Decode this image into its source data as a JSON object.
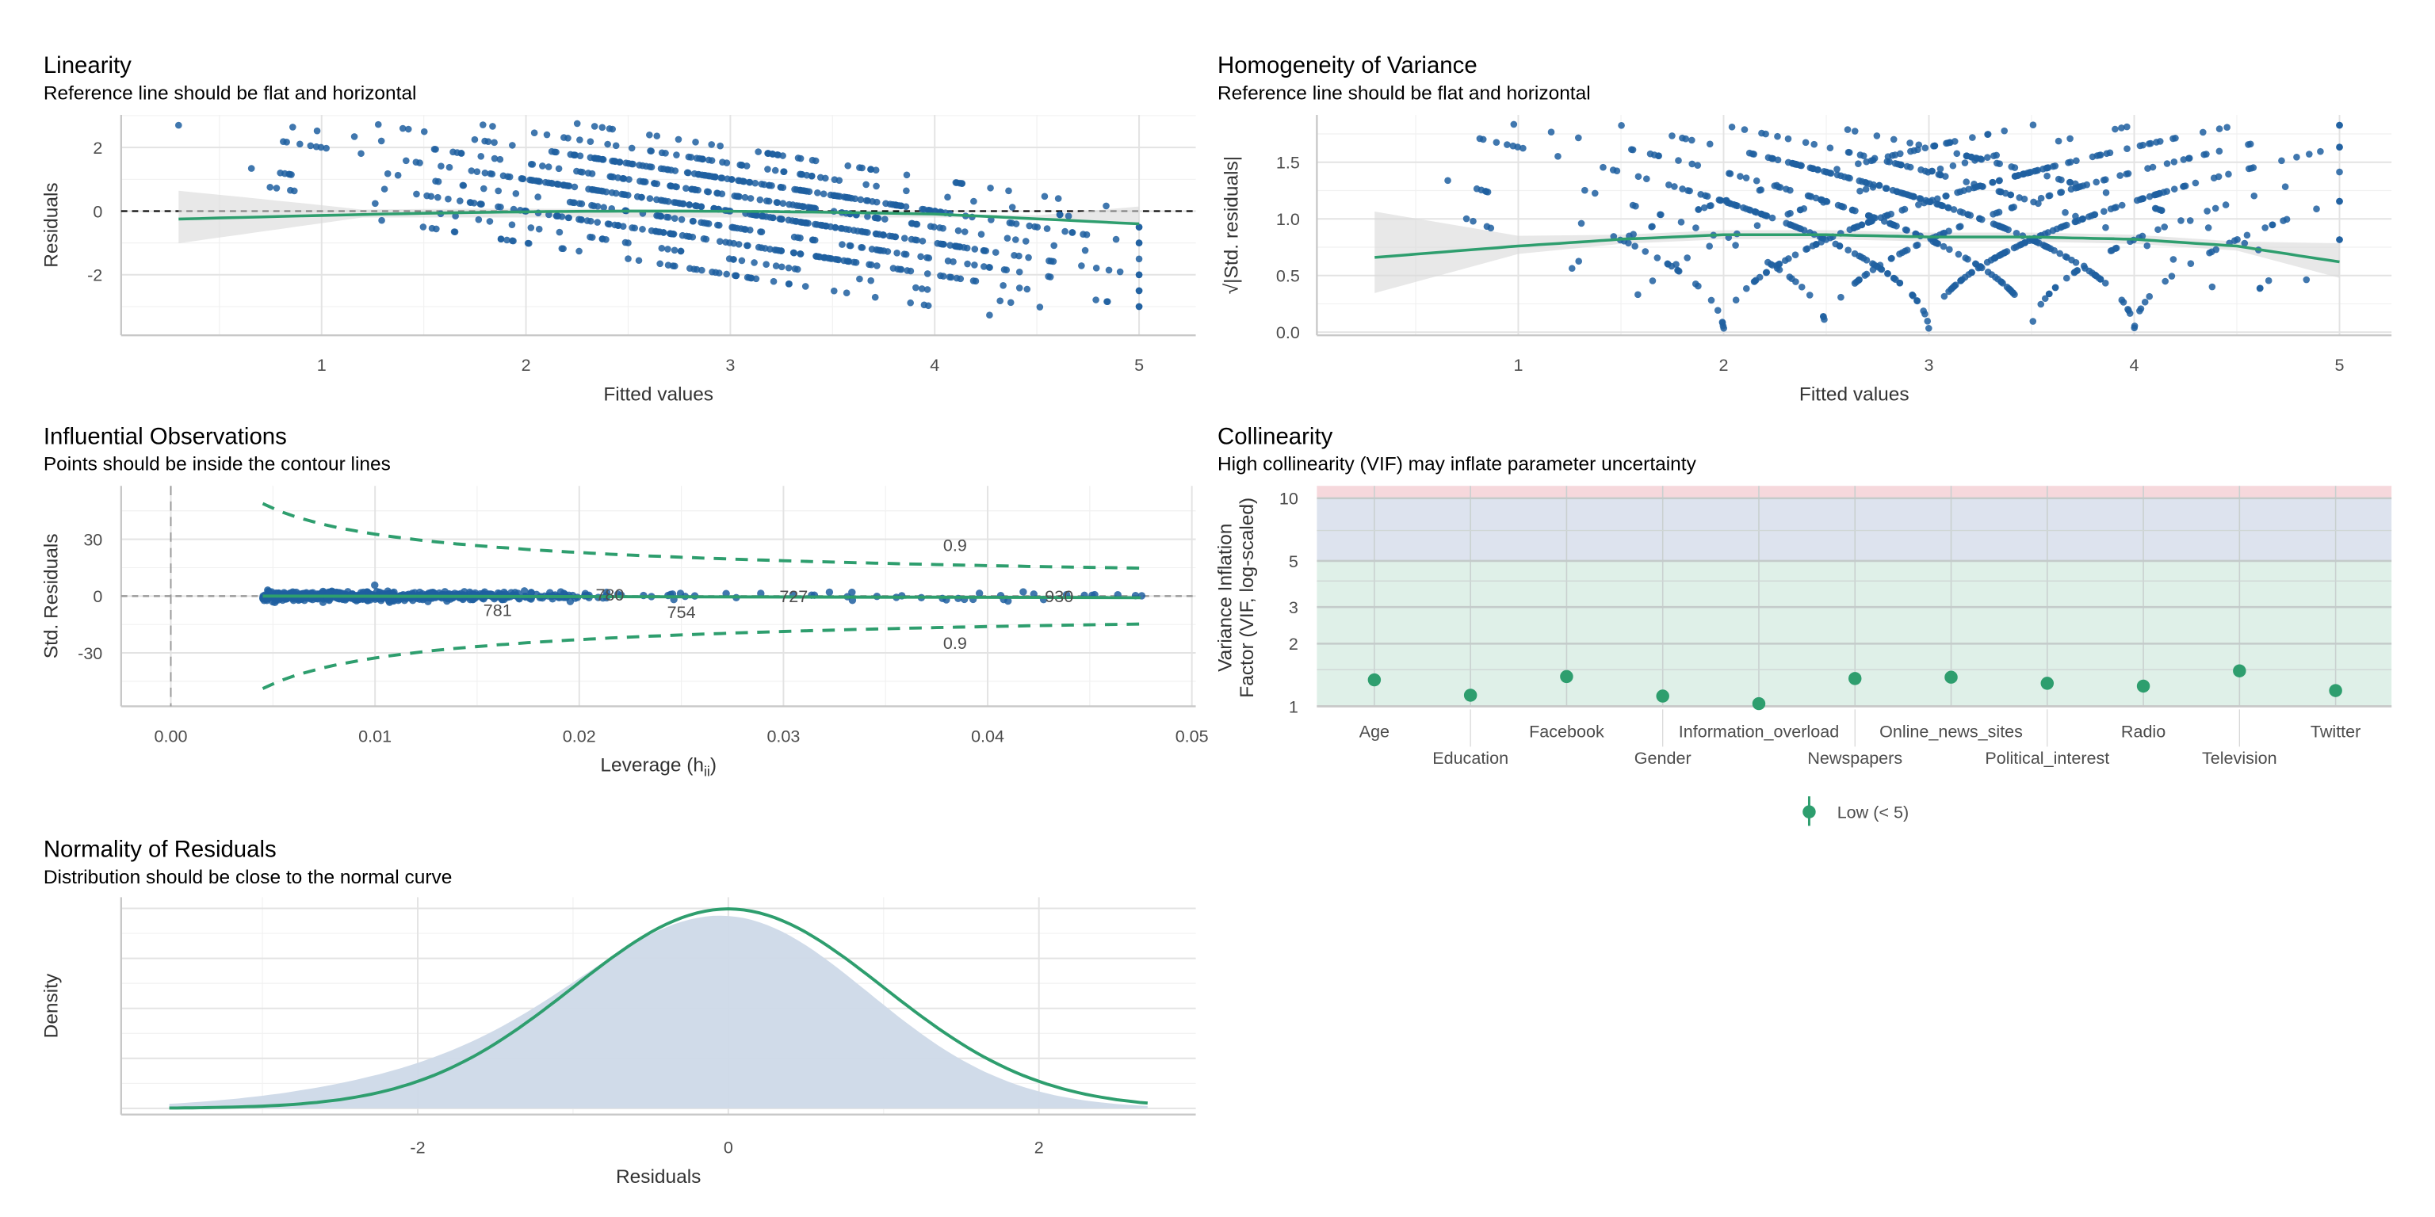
{
  "colors": {
    "points": "#1f5fa0",
    "line": "#2e9e6e",
    "band": "#d9d9d9",
    "density": "#cdd9e8",
    "high": "#f6d8dc",
    "moderate": "#dde3ee",
    "low": "#dff0e8"
  },
  "chart_data": [
    {
      "type": "scatter",
      "title": "Linearity",
      "subtitle": "Reference line should be flat and horizontal",
      "xlabel": "Fitted values",
      "ylabel": "Residuals",
      "xlim": [
        0.25,
        5.3
      ],
      "ylim": [
        -4,
        3
      ],
      "xticks": [
        "1",
        "2",
        "3",
        "4",
        "5"
      ],
      "yticks": [
        "2",
        "0",
        "-2"
      ],
      "reference_line": 0,
      "grid": true
    },
    {
      "type": "scatter",
      "title": "Homogeneity of Variance",
      "subtitle": "Reference line should be flat and horizontal",
      "xlabel": "Fitted values",
      "ylabel": "√|Std. residuals|",
      "xlim": [
        0.25,
        5.3
      ],
      "ylim": [
        0,
        1.9
      ],
      "xticks": [
        "1",
        "2",
        "3",
        "4",
        "5"
      ],
      "yticks": [
        "0.0",
        "0.5",
        "1.0",
        "1.5"
      ],
      "grid": true
    },
    {
      "type": "scatter",
      "title": "Influential Observations",
      "subtitle": "Points should be inside the contour lines",
      "xlabel": "Leverage (h",
      "xlabel_sub": "ii",
      "xlabel_end": ")",
      "ylabel": "Std. Residuals",
      "xlim": [
        -0.0025,
        0.05
      ],
      "ylim": [
        -58,
        58
      ],
      "xticks": [
        "0.00",
        "0.01",
        "0.02",
        "0.03",
        "0.04",
        "0.05"
      ],
      "yticks": [
        "30",
        "0",
        "-30"
      ],
      "contour_label": "0.9",
      "labeled_points": [
        {
          "id": "781",
          "leverage": 0.016,
          "resid": -4
        },
        {
          "id": "780",
          "leverage": 0.0215,
          "resid": 1
        },
        {
          "id": "754",
          "leverage": 0.025,
          "resid": -5
        },
        {
          "id": "727",
          "leverage": 0.0305,
          "resid": 0
        },
        {
          "id": "930",
          "leverage": 0.0435,
          "resid": 0
        }
      ],
      "grid": true
    },
    {
      "type": "scatter",
      "title": "Collinearity",
      "subtitle": "High collinearity (VIF) may inflate parameter uncertainty",
      "ylabel_line1": "Variance Inflation",
      "ylabel_line2": "Factor (VIF, log-scaled)",
      "yscale": "log",
      "ylim": [
        1,
        11.5
      ],
      "yticks": [
        "1",
        "2",
        "3",
        "5",
        "10"
      ],
      "categories": [
        "Age",
        "Education",
        "Facebook",
        "Gender",
        "Information_overload",
        "Newspapers",
        "Online_news_sites",
        "Political_interest",
        "Radio",
        "Television",
        "Twitter"
      ],
      "values": [
        1.34,
        1.13,
        1.39,
        1.12,
        1.03,
        1.36,
        1.38,
        1.29,
        1.25,
        1.48,
        1.19
      ],
      "legend": {
        "label": "Low (< 5)",
        "position": "bottom"
      },
      "grid": true
    },
    {
      "type": "area",
      "title": "Normality of Residuals",
      "subtitle": "Distribution should be close to the normal curve",
      "xlabel": "Residuals",
      "ylabel": "Density",
      "xlim": [
        -3.9,
        3.0
      ],
      "xticks": [
        "-2",
        "0",
        "2"
      ],
      "grid": true
    }
  ]
}
